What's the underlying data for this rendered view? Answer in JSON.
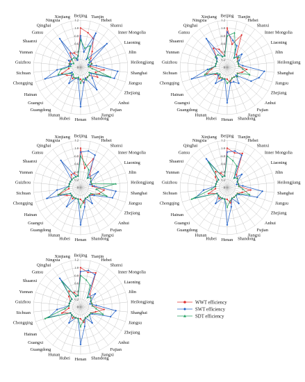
{
  "figure": {
    "title": "",
    "legend": [
      {
        "label": "WWT  efficiency",
        "color": "#e03030",
        "marker": "circle"
      },
      {
        "label": "SWT   efficiency",
        "color": "#2060c8",
        "marker": "diamond"
      },
      {
        "label": "SDT   efficiency",
        "color": "#20a060",
        "marker": "triangle"
      }
    ]
  },
  "chart_data": [
    {
      "type": "radar",
      "title": "",
      "categories": [
        "Beijing",
        "Tianjin",
        "Hebei",
        "Shanxi",
        "Inner Mongolia",
        "Liaoning",
        "Jilin",
        "Heilongjiang",
        "Shanghai",
        "Jiangsu",
        "Zhejiang",
        "Anhui",
        "Fujian",
        "Jiangxi",
        "Shandong",
        "Henan",
        "Hubei",
        "Hunan",
        "Guangdong",
        "Guangxi",
        "Hainan",
        "Chongqing",
        "Sichuan",
        "Guizhou",
        "Yunnan",
        "Shaanxi",
        "Gansu",
        "Qinghai",
        "Ningxia",
        "Xinjiang"
      ],
      "rlim": [
        0,
        1.2
      ],
      "rticks": [
        "0",
        "0.2",
        "0.4",
        "0.6",
        "0.8",
        "1.0",
        "1.2"
      ],
      "series": [
        {
          "values": [
            1.0,
            0.9,
            0.8,
            0.5,
            0.35,
            0.3,
            0.3,
            0.25,
            0.6,
            0.4,
            0.5,
            0.3,
            0.3,
            0.3,
            0.4,
            0.3,
            0.3,
            0.3,
            0.35,
            0.3,
            0.4,
            0.5,
            0.3,
            0.3,
            0.3,
            0.3,
            0.3,
            0.45,
            0.4,
            0.3
          ]
        },
        {
          "values": [
            0.8,
            0.4,
            0.95,
            0.25,
            0.9,
            0.3,
            0.2,
            0.4,
            0.95,
            0.9,
            0.3,
            0.4,
            0.7,
            0.3,
            0.4,
            1.0,
            0.3,
            0.3,
            0.5,
            0.3,
            0.25,
            0.95,
            0.6,
            0.3,
            0.25,
            0.35,
            0.3,
            0.9,
            0.2,
            0.3
          ]
        },
        {
          "values": [
            0.7,
            0.5,
            0.6,
            0.3,
            0.3,
            0.25,
            0.3,
            0.2,
            0.3,
            0.8,
            0.25,
            0.3,
            0.3,
            0.35,
            0.3,
            0.4,
            0.25,
            0.3,
            0.3,
            0.25,
            0.3,
            0.6,
            0.5,
            0.25,
            0.3,
            0.2,
            0.3,
            0.3,
            0.25,
            0.3
          ]
        }
      ]
    },
    {
      "type": "radar",
      "title": "",
      "categories": [
        "Beijing",
        "Tianjin",
        "Hebei",
        "Shanxi",
        "Inner Mongolia",
        "Liaoning",
        "Jilin",
        "Heilongjiang",
        "Shanghai",
        "Jiangsu",
        "Zhejiang",
        "Anhui",
        "Fujian",
        "Jiangxi",
        "Shandong",
        "Henan",
        "Hubei",
        "Hunan",
        "Guangdong",
        "Guangxi",
        "Hainan",
        "Chongqing",
        "Sichuan",
        "Guizhou",
        "Yunnan",
        "Shaanxi",
        "Gansu",
        "Qinghai",
        "Ningxia",
        "Xinjiang"
      ],
      "rlim": [
        0,
        1.2
      ],
      "rticks": [
        "0",
        "0.2",
        "0.4",
        "0.6",
        "0.8",
        "1.0",
        "1.2"
      ],
      "series": [
        {
          "values": [
            1.0,
            0.6,
            0.9,
            0.4,
            0.35,
            0.3,
            0.3,
            0.3,
            0.5,
            0.4,
            0.3,
            0.35,
            0.3,
            0.3,
            0.4,
            0.3,
            0.3,
            0.3,
            0.35,
            0.3,
            0.35,
            0.55,
            0.4,
            0.3,
            0.3,
            0.3,
            0.35,
            0.6,
            0.5,
            0.3
          ]
        },
        {
          "values": [
            0.9,
            0.7,
            0.6,
            0.3,
            0.5,
            0.35,
            0.3,
            0.4,
            0.95,
            0.85,
            0.7,
            0.3,
            0.5,
            0.4,
            0.4,
            0.9,
            0.3,
            0.35,
            0.5,
            0.3,
            0.3,
            0.95,
            0.5,
            0.3,
            0.3,
            0.3,
            0.35,
            0.9,
            0.3,
            0.3
          ]
        },
        {
          "values": [
            0.8,
            0.9,
            0.5,
            0.3,
            0.4,
            0.3,
            0.3,
            0.3,
            0.4,
            0.6,
            0.3,
            0.35,
            0.3,
            0.3,
            0.35,
            0.4,
            0.3,
            0.3,
            0.3,
            0.25,
            0.3,
            0.6,
            0.45,
            0.3,
            0.3,
            0.3,
            0.4,
            0.4,
            0.3,
            0.3
          ]
        }
      ]
    },
    {
      "type": "radar",
      "title": "",
      "categories": [
        "Beijing",
        "Tianjin",
        "Hebei",
        "Shanxi",
        "Inner Mongolia",
        "Liaoning",
        "Jilin",
        "Heilongjiang",
        "Shanghai",
        "Jiangsu",
        "Zhejiang",
        "Anhui",
        "Fujian",
        "Jiangxi",
        "Shandong",
        "Henan",
        "Hubei",
        "Hunan",
        "Guangdong",
        "Guangxi",
        "Hainan",
        "Chongqing",
        "Sichuan",
        "Guizhou",
        "Yunnan",
        "Shaanxi",
        "Gansu",
        "Qinghai",
        "Ningxia",
        "Xinjiang"
      ],
      "rlim": [
        0,
        1.2
      ],
      "rticks": [
        "0",
        "0.2",
        "0.4",
        "0.6",
        "0.8",
        "1.0",
        "1.2"
      ],
      "series": [
        {
          "values": [
            1.0,
            0.5,
            0.8,
            0.4,
            0.35,
            0.3,
            0.3,
            0.3,
            0.6,
            0.5,
            0.35,
            0.3,
            0.3,
            0.3,
            0.4,
            0.3,
            0.3,
            0.3,
            0.35,
            0.3,
            0.4,
            0.6,
            0.3,
            0.3,
            0.3,
            0.3,
            0.3,
            0.4,
            0.4,
            0.3
          ]
        },
        {
          "values": [
            0.9,
            0.95,
            0.9,
            0.3,
            0.6,
            0.3,
            0.25,
            0.35,
            0.9,
            0.85,
            0.4,
            0.3,
            0.5,
            0.3,
            0.5,
            0.95,
            0.3,
            0.3,
            0.6,
            0.3,
            0.3,
            0.9,
            0.6,
            0.3,
            0.3,
            0.3,
            0.3,
            0.85,
            0.3,
            0.3
          ]
        },
        {
          "values": [
            0.8,
            0.6,
            0.5,
            0.3,
            0.35,
            0.3,
            0.3,
            0.9,
            0.4,
            0.7,
            0.3,
            0.3,
            0.3,
            0.3,
            0.35,
            0.5,
            0.3,
            0.3,
            0.3,
            0.3,
            0.3,
            0.6,
            0.4,
            0.3,
            0.3,
            0.3,
            0.3,
            0.3,
            0.3,
            0.3
          ]
        }
      ]
    },
    {
      "type": "radar",
      "title": "",
      "categories": [
        "Beijing",
        "Tianjin",
        "Hebei",
        "Shanxi",
        "Inner Mongolia",
        "Liaoning",
        "Jilin",
        "Heilongjiang",
        "Shanghai",
        "Jiangsu",
        "Zhejiang",
        "Anhui",
        "Fujian",
        "Jiangxi",
        "Shandong",
        "Henan",
        "Hubei",
        "Hunan",
        "Guangdong",
        "Guangxi",
        "Hainan",
        "Chongqing",
        "Sichuan",
        "Guizhou",
        "Yunnan",
        "Shaanxi",
        "Gansu",
        "Qinghai",
        "Ningxia",
        "Xinjiang"
      ],
      "rlim": [
        0,
        1.2
      ],
      "rticks": [
        "0",
        "0.2",
        "0.4",
        "0.6",
        "0.8",
        "1.0",
        "1.2"
      ],
      "series": [
        {
          "values": [
            1.0,
            0.9,
            0.95,
            0.4,
            0.35,
            0.3,
            0.3,
            0.3,
            0.6,
            0.4,
            0.3,
            0.3,
            0.3,
            0.3,
            0.4,
            0.3,
            0.3,
            0.3,
            0.35,
            0.3,
            0.3,
            0.5,
            0.3,
            0.3,
            0.3,
            0.3,
            0.4,
            0.5,
            0.4,
            0.3
          ]
        },
        {
          "values": [
            0.9,
            0.95,
            0.9,
            0.3,
            0.5,
            0.3,
            0.25,
            0.4,
            0.9,
            0.8,
            0.35,
            0.3,
            0.5,
            0.3,
            0.5,
            0.95,
            0.3,
            0.3,
            0.5,
            0.3,
            0.3,
            0.85,
            0.6,
            0.3,
            0.3,
            0.3,
            0.3,
            0.9,
            0.3,
            0.3
          ]
        },
        {
          "values": [
            0.8,
            0.7,
            0.6,
            0.3,
            0.35,
            0.3,
            0.3,
            0.3,
            0.4,
            0.6,
            0.3,
            0.3,
            0.3,
            0.3,
            0.35,
            0.5,
            0.3,
            0.3,
            0.3,
            0.3,
            0.3,
            0.95,
            0.4,
            0.3,
            0.3,
            0.3,
            0.3,
            0.8,
            0.3,
            0.3
          ]
        }
      ]
    },
    {
      "type": "radar",
      "title": "",
      "categories": [
        "Beijing",
        "Tianjin",
        "Hebei",
        "Shanxi",
        "Inner Mongolia",
        "Liaoning",
        "Jilin",
        "Heilongjiang",
        "Shanghai",
        "Jiangsu",
        "Zhejiang",
        "Anhui",
        "Fujian",
        "Jiangxi",
        "Shandong",
        "Henan",
        "Hubei",
        "Hunan",
        "Guangdong",
        "Guangxi",
        "Hainan",
        "Chongqing",
        "Sichuan",
        "Guizhou",
        "Yunnan",
        "Shaanxi",
        "Gansu",
        "Qinghai",
        "Ningxia",
        "Xinjiang"
      ],
      "rlim": [
        0,
        1.2
      ],
      "rticks": [
        "0",
        "0.2",
        "0.4",
        "0.6",
        "0.8",
        "1.0",
        "1.2"
      ],
      "series": [
        {
          "values": [
            1.0,
            0.9,
            0.95,
            0.4,
            0.35,
            0.3,
            0.3,
            0.3,
            0.6,
            0.4,
            0.3,
            0.3,
            0.3,
            0.3,
            0.4,
            0.3,
            0.3,
            0.3,
            0.35,
            0.3,
            0.3,
            0.5,
            0.3,
            0.3,
            0.3,
            0.3,
            0.4,
            0.5,
            0.4,
            0.3
          ]
        },
        {
          "values": [
            0.9,
            0.95,
            0.9,
            0.3,
            0.5,
            0.3,
            0.25,
            0.4,
            0.9,
            0.8,
            0.35,
            0.3,
            0.5,
            0.3,
            0.5,
            0.95,
            0.3,
            0.3,
            0.5,
            0.3,
            0.3,
            0.85,
            0.6,
            0.3,
            0.3,
            0.3,
            0.3,
            0.9,
            0.3,
            0.3
          ]
        },
        {
          "values": [
            0.8,
            0.7,
            0.6,
            0.3,
            0.35,
            0.3,
            0.3,
            0.3,
            0.4,
            0.6,
            0.3,
            0.3,
            0.3,
            0.3,
            0.35,
            0.5,
            0.3,
            0.3,
            0.3,
            0.3,
            0.3,
            0.95,
            0.4,
            0.3,
            0.3,
            0.3,
            0.3,
            0.8,
            0.3,
            0.3
          ]
        }
      ]
    }
  ]
}
